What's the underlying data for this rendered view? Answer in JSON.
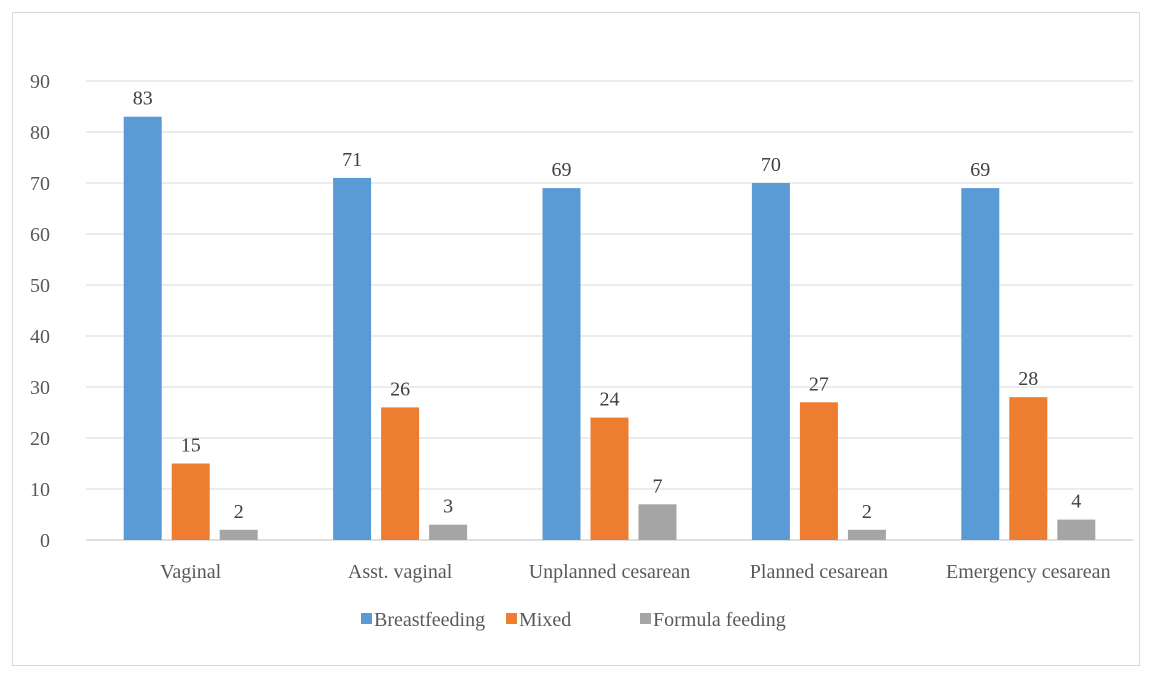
{
  "chart_data": {
    "type": "bar",
    "categories": [
      "Vaginal",
      "Asst. vaginal",
      "Unplanned cesarean",
      "Planned cesarean",
      "Emergency cesarean"
    ],
    "series": [
      {
        "name": "Breastfeeding",
        "values": [
          83,
          71,
          69,
          70,
          69
        ],
        "color": "#5b9bd5"
      },
      {
        "name": "Mixed",
        "values": [
          15,
          26,
          24,
          27,
          28
        ],
        "color": "#ed7d31"
      },
      {
        "name": "Formula feeding",
        "values": [
          2,
          3,
          7,
          2,
          4
        ],
        "color": "#a5a5a5"
      }
    ],
    "yticks": [
      "0",
      "10",
      "20",
      "30",
      "40",
      "50",
      "60",
      "70",
      "80",
      "90"
    ],
    "ylim": [
      0,
      90
    ],
    "title": "",
    "xlabel": "",
    "ylabel": "",
    "grid": true,
    "legend_position": "bottom"
  }
}
